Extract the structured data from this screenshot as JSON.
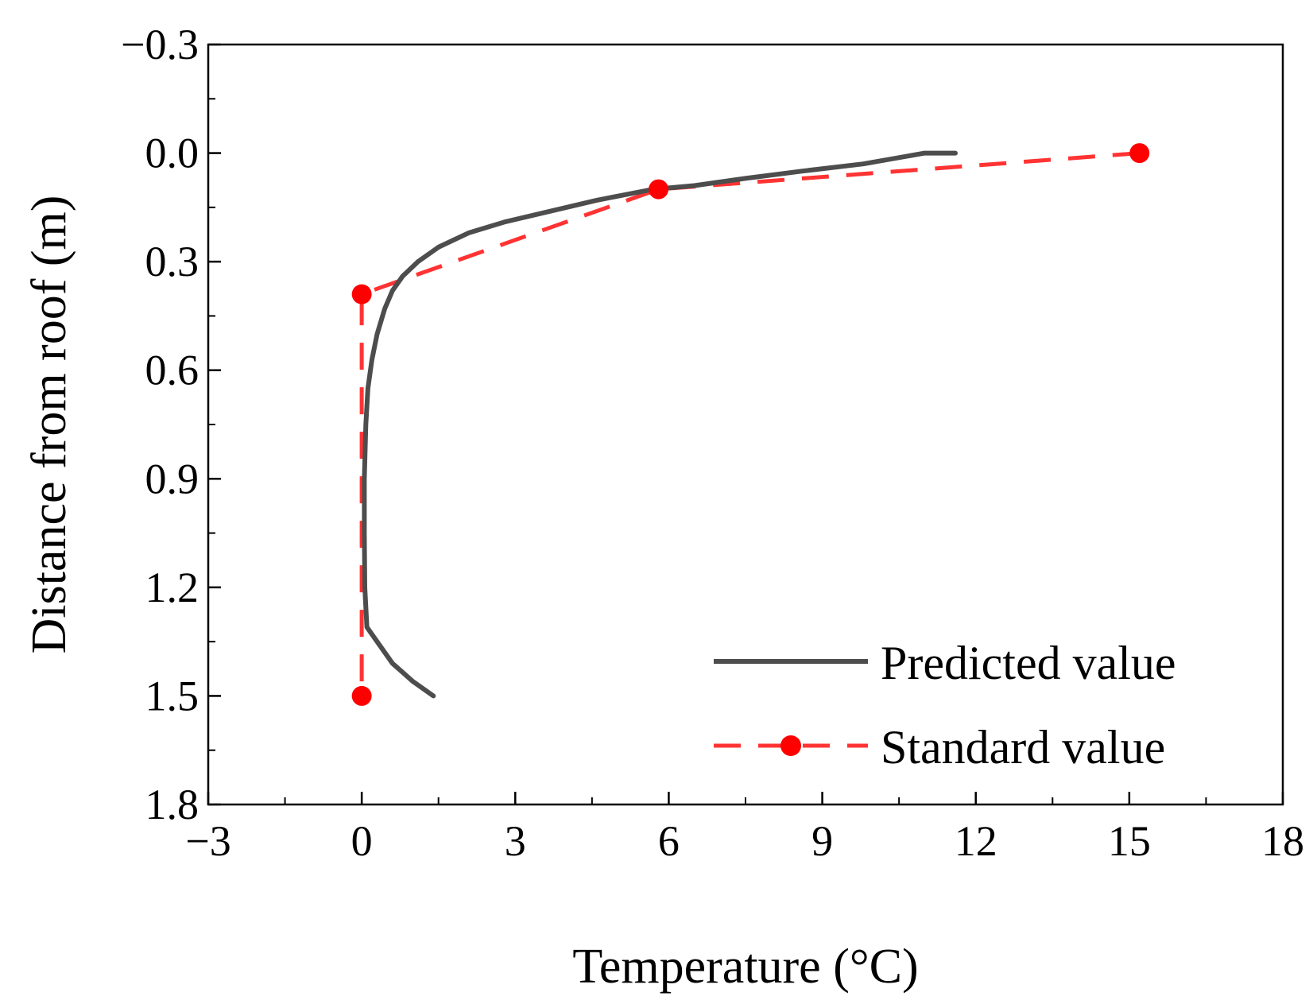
{
  "chart_data": {
    "type": "line",
    "title": "",
    "xlabel": "Temperature (°C)",
    "ylabel": "Distance from roof (m)",
    "xlim": [
      -3,
      18
    ],
    "ylim": [
      1.8,
      -0.3
    ],
    "y_inverted": true,
    "x_ticks": [
      -3,
      0,
      3,
      6,
      9,
      12,
      15,
      18
    ],
    "x_tick_labels": [
      "−3",
      "0",
      "3",
      "6",
      "9",
      "12",
      "15",
      "18"
    ],
    "y_ticks": [
      -0.3,
      0.0,
      0.3,
      0.6,
      0.9,
      1.2,
      1.5,
      1.8
    ],
    "y_tick_labels": [
      "−0.3",
      "0.0",
      "0.3",
      "0.6",
      "0.9",
      "1.2",
      "1.5",
      "1.8"
    ],
    "grid": false,
    "legend_position": "bottom-right",
    "series": [
      {
        "name": "Predicted value",
        "style": "solid",
        "color": "#4d4d4d",
        "points": [
          [
            11.6,
            0.0
          ],
          [
            11.0,
            0.0
          ],
          [
            9.8,
            0.03
          ],
          [
            8.6,
            0.05
          ],
          [
            7.5,
            0.07
          ],
          [
            6.5,
            0.09
          ],
          [
            5.7,
            0.1
          ],
          [
            4.6,
            0.13
          ],
          [
            3.7,
            0.16
          ],
          [
            2.8,
            0.19
          ],
          [
            2.1,
            0.22
          ],
          [
            1.5,
            0.26
          ],
          [
            1.1,
            0.3
          ],
          [
            0.8,
            0.34
          ],
          [
            0.6,
            0.38
          ],
          [
            0.45,
            0.43
          ],
          [
            0.3,
            0.5
          ],
          [
            0.2,
            0.57
          ],
          [
            0.12,
            0.65
          ],
          [
            0.08,
            0.75
          ],
          [
            0.05,
            0.9
          ],
          [
            0.05,
            1.05
          ],
          [
            0.06,
            1.2
          ],
          [
            0.1,
            1.31
          ],
          [
            0.6,
            1.41
          ],
          [
            1.0,
            1.46
          ],
          [
            1.4,
            1.5
          ]
        ]
      },
      {
        "name": "Standard value",
        "style": "dashed",
        "color": "#ff3333",
        "marker": "circle",
        "marker_color": "#ff0000",
        "points": [
          [
            15.2,
            0.0
          ],
          [
            5.8,
            0.1
          ],
          [
            0.0,
            0.39
          ],
          [
            0.0,
            1.5
          ]
        ]
      }
    ]
  }
}
